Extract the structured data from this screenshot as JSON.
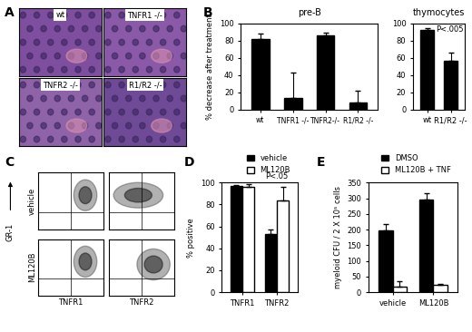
{
  "panel_letters": [
    "A",
    "B",
    "C",
    "D",
    "E"
  ],
  "histology": {
    "labels": [
      "wt",
      "TNFR1 -/-",
      "TNFR2 -/-",
      "R1/R2 -/-"
    ]
  },
  "flow": {
    "rows": [
      "vehicle",
      "ML120B"
    ],
    "columns": [
      "TNFR1",
      "TNFR2"
    ],
    "y_label": "GR-1"
  },
  "chart_data": [
    {
      "type": "bar",
      "title": "pre-B",
      "y_label": "% decrease after treatment",
      "categories": [
        "wt",
        "TNFR1 -/-",
        "TNFR2-/-",
        "R1/R2 -/-"
      ],
      "values": [
        82,
        13,
        86,
        8
      ],
      "errors": [
        6,
        30,
        3,
        14
      ],
      "color": "#000000",
      "ylim": [
        0,
        100
      ],
      "yticks": [
        0,
        20,
        40,
        60,
        80,
        100
      ]
    },
    {
      "type": "bar",
      "title": "thymocytes",
      "annotation": "P<.005",
      "categories": [
        "wt",
        "R1/R2 -/-"
      ],
      "values": [
        92,
        56
      ],
      "errors": [
        2,
        10
      ],
      "color": "#000000",
      "ylim": [
        0,
        100
      ],
      "yticks": [
        0,
        20,
        40,
        60,
        80,
        100
      ]
    },
    {
      "type": "bar",
      "y_label": "% positive",
      "annotation": "P<.05",
      "legend": "upper right",
      "categories": [
        "TNFR1",
        "TNFR2"
      ],
      "series": [
        {
          "name": "vehicle",
          "color": "#000000",
          "values": [
            97,
            53
          ],
          "errors": [
            1,
            4
          ]
        },
        {
          "name": "ML120B",
          "color": "#ffffff",
          "values": [
            96,
            84
          ],
          "errors": [
            3,
            12
          ]
        }
      ],
      "ylim": [
        0,
        100
      ],
      "yticks": [
        0,
        20,
        40,
        60,
        80,
        100
      ]
    },
    {
      "type": "bar",
      "y_label": "myeloid CFU / 2 X 10⁵ cells",
      "legend": "upper right",
      "categories": [
        "vehicle",
        "ML120B"
      ],
      "series": [
        {
          "name": "DMSO",
          "color": "#000000",
          "values": [
            198,
            295
          ],
          "errors": [
            20,
            20
          ]
        },
        {
          "name": "ML120B + TNF",
          "color": "#ffffff",
          "values": [
            18,
            22
          ],
          "errors": [
            18,
            4
          ]
        }
      ],
      "ylim": [
        0,
        350
      ],
      "yticks": [
        0,
        50,
        100,
        150,
        200,
        250,
        300,
        350
      ]
    }
  ]
}
